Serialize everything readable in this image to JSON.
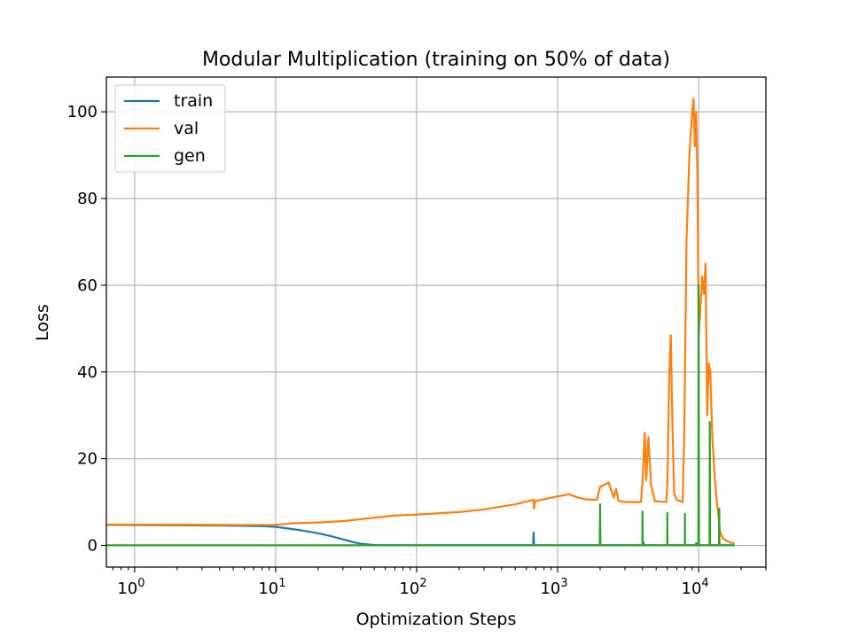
{
  "chart_data": {
    "type": "line",
    "title": "Modular Multiplication (training on 50% of data)",
    "xlabel": "Optimization Steps",
    "ylabel": "Loss",
    "xscale": "log",
    "xlim": [
      0.63,
      30000
    ],
    "ylim": [
      -5,
      108
    ],
    "grid": true,
    "legend_position": "upper-left",
    "x_ticks": [
      {
        "value": 1,
        "base": "10",
        "exp": "0"
      },
      {
        "value": 10,
        "base": "10",
        "exp": "1"
      },
      {
        "value": 100,
        "base": "10",
        "exp": "2"
      },
      {
        "value": 1000,
        "base": "10",
        "exp": "3"
      },
      {
        "value": 10000,
        "base": "10",
        "exp": "4"
      }
    ],
    "y_ticks": [
      {
        "value": 0,
        "label": "0"
      },
      {
        "value": 20,
        "label": "20"
      },
      {
        "value": 40,
        "label": "40"
      },
      {
        "value": 60,
        "label": "60"
      },
      {
        "value": 80,
        "label": "80"
      },
      {
        "value": 100,
        "label": "100"
      }
    ],
    "series": [
      {
        "name": "train",
        "color": "#1f77b4",
        "points": [
          [
            0.63,
            4.75
          ],
          [
            1,
            4.7
          ],
          [
            2,
            4.65
          ],
          [
            5,
            4.55
          ],
          [
            8,
            4.45
          ],
          [
            10,
            4.3
          ],
          [
            15,
            3.5
          ],
          [
            20,
            2.8
          ],
          [
            25,
            2.1
          ],
          [
            30,
            1.4
          ],
          [
            35,
            0.8
          ],
          [
            40,
            0.4
          ],
          [
            50,
            0.1
          ],
          [
            70,
            0.05
          ],
          [
            100,
            0.03
          ],
          [
            670,
            0.03
          ],
          [
            675,
            3.0
          ],
          [
            680,
            0.03
          ],
          [
            4000,
            0.03
          ],
          [
            4050,
            0.8
          ],
          [
            4100,
            0.03
          ],
          [
            9500,
            0.03
          ],
          [
            9600,
            0.5
          ],
          [
            9700,
            0.03
          ],
          [
            18000,
            0.03
          ]
        ]
      },
      {
        "name": "val",
        "color": "#ff7f0e",
        "points": [
          [
            0.63,
            4.8
          ],
          [
            1,
            4.8
          ],
          [
            2,
            4.78
          ],
          [
            5,
            4.72
          ],
          [
            10,
            4.75
          ],
          [
            13,
            5.1
          ],
          [
            20,
            5.3
          ],
          [
            30,
            5.6
          ],
          [
            50,
            6.4
          ],
          [
            70,
            6.9
          ],
          [
            100,
            7.1
          ],
          [
            200,
            7.7
          ],
          [
            300,
            8.3
          ],
          [
            500,
            9.5
          ],
          [
            650,
            10.4
          ],
          [
            675,
            10.5
          ],
          [
            680,
            8.5
          ],
          [
            690,
            10.2
          ],
          [
            900,
            11.0
          ],
          [
            1200,
            11.8
          ],
          [
            1400,
            11.0
          ],
          [
            1600,
            10.6
          ],
          [
            1900,
            10.5
          ],
          [
            2000,
            13.5
          ],
          [
            2300,
            14.5
          ],
          [
            2500,
            11.0
          ],
          [
            2600,
            13.0
          ],
          [
            2700,
            10.3
          ],
          [
            3000,
            10.0
          ],
          [
            3900,
            10.0
          ],
          [
            4000,
            15.0
          ],
          [
            4150,
            26.0
          ],
          [
            4250,
            15.0
          ],
          [
            4400,
            25.0
          ],
          [
            4600,
            14.0
          ],
          [
            4900,
            10.2
          ],
          [
            5900,
            10.0
          ],
          [
            6000,
            14.0
          ],
          [
            6200,
            40.0
          ],
          [
            6350,
            48.5
          ],
          [
            6500,
            30.0
          ],
          [
            6700,
            12.0
          ],
          [
            7000,
            10.5
          ],
          [
            7700,
            10.0
          ],
          [
            7900,
            25.0
          ],
          [
            8200,
            70.0
          ],
          [
            8600,
            90.0
          ],
          [
            9000,
            100.0
          ],
          [
            9200,
            103.0
          ],
          [
            9400,
            92.0
          ],
          [
            9600,
            100.0
          ],
          [
            9800,
            85.0
          ],
          [
            10000,
            48.0
          ],
          [
            10300,
            55.0
          ],
          [
            10600,
            62.0
          ],
          [
            10900,
            58.0
          ],
          [
            11200,
            65.0
          ],
          [
            11500,
            30.0
          ],
          [
            11800,
            42.0
          ],
          [
            12100,
            40.0
          ],
          [
            12500,
            25.0
          ],
          [
            13000,
            16.0
          ],
          [
            13300,
            12.0
          ],
          [
            13700,
            8.0
          ],
          [
            14200,
            3.0
          ],
          [
            15000,
            1.5
          ],
          [
            16000,
            1.0
          ],
          [
            17000,
            0.6
          ],
          [
            18000,
            0.5
          ]
        ]
      },
      {
        "name": "gen",
        "color": "#2ca02c",
        "points": [
          [
            0.63,
            0.03
          ],
          [
            1990,
            0.03
          ],
          [
            2000,
            9.5
          ],
          [
            2010,
            0.03
          ],
          [
            3990,
            0.03
          ],
          [
            4000,
            7.8
          ],
          [
            4010,
            0.03
          ],
          [
            5990,
            0.03
          ],
          [
            6000,
            7.5
          ],
          [
            6010,
            0.03
          ],
          [
            7990,
            0.03
          ],
          [
            8000,
            7.3
          ],
          [
            8010,
            0.03
          ],
          [
            9950,
            0.03
          ],
          [
            10000,
            60.0
          ],
          [
            10060,
            0.03
          ],
          [
            11950,
            0.03
          ],
          [
            12000,
            28.5
          ],
          [
            12060,
            0.03
          ],
          [
            13950,
            0.03
          ],
          [
            14000,
            8.5
          ],
          [
            14060,
            0.03
          ],
          [
            18000,
            0.03
          ]
        ]
      }
    ]
  }
}
